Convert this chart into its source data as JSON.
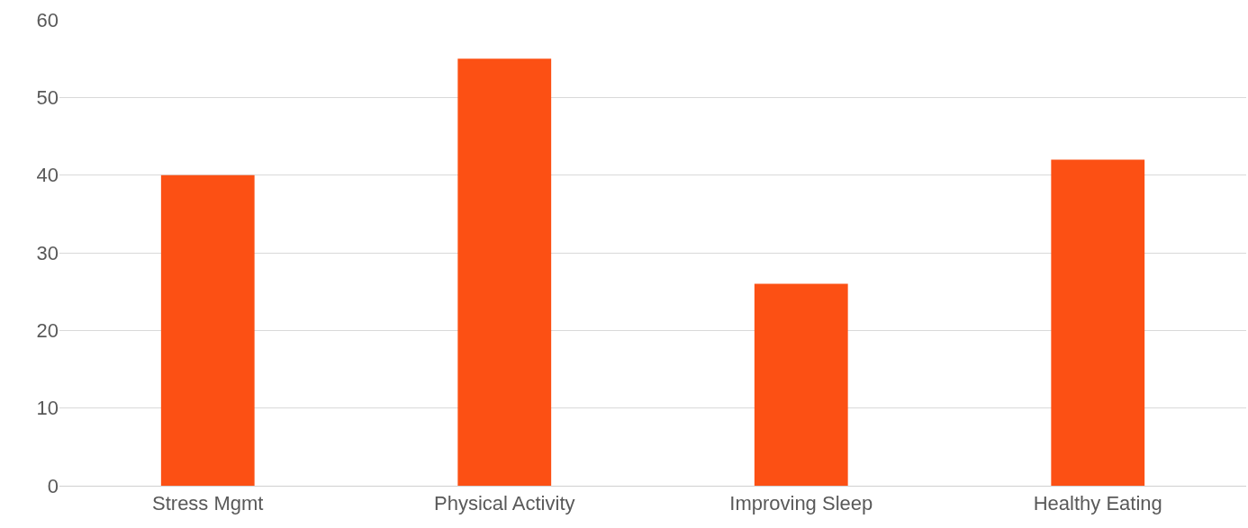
{
  "chart_data": {
    "type": "bar",
    "categories": [
      "Stress Mgmt",
      "Physical Activity",
      "Improving Sleep",
      "Healthy Eating"
    ],
    "values": [
      40,
      55,
      26,
      42
    ],
    "color": "#fc5014",
    "ylim": [
      0,
      60
    ],
    "yticks": [
      0,
      10,
      20,
      30,
      40,
      50,
      60
    ],
    "grid": "y"
  }
}
